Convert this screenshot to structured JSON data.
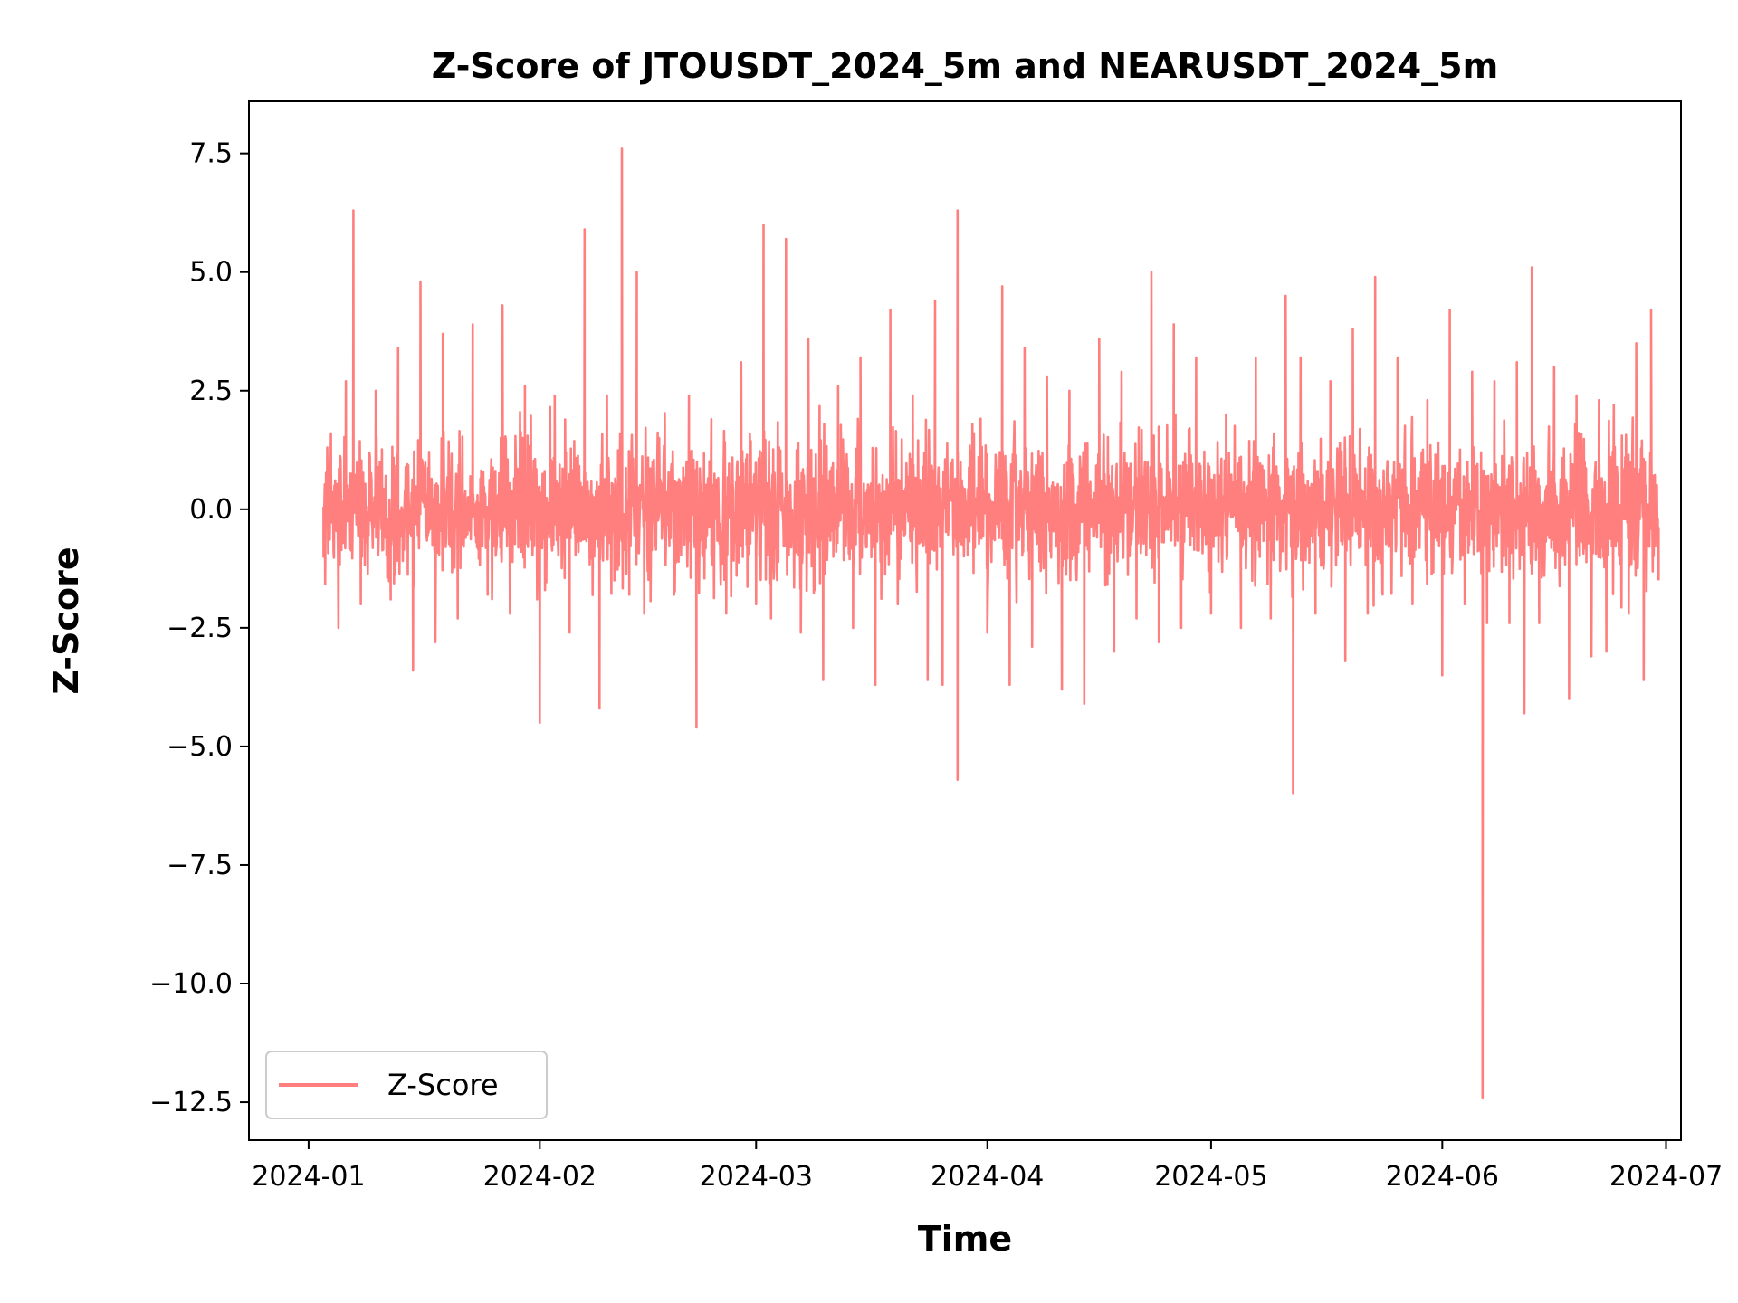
{
  "chart_data": {
    "type": "line",
    "title": "Z-Score of JTOUSDT_2024_5m and NEARUSDT_2024_5m",
    "xlabel": "Time",
    "ylabel": "Z-Score",
    "x_axis_type": "date",
    "xlim": [
      "2023-12-24",
      "2024-07-03"
    ],
    "ylim": [
      -13.3,
      8.6
    ],
    "x_ticks": [
      "2024-01",
      "2024-02",
      "2024-03",
      "2024-04",
      "2024-05",
      "2024-06",
      "2024-07"
    ],
    "y_ticks": [
      7.5,
      5.0,
      2.5,
      0.0,
      -2.5,
      -5.0,
      -7.5,
      -10.0,
      -12.5
    ],
    "y_tick_labels": [
      "7.5",
      "5.0",
      "2.5",
      "0.0",
      "−2.5",
      "−5.0",
      "−7.5",
      "−10.0",
      "−12.5"
    ],
    "grid": false,
    "legend": {
      "placement": "lower-left",
      "entries": [
        "Z-Score"
      ]
    },
    "colors": {
      "line": "#ff7f7f",
      "axes": "#000000",
      "background": "#ffffff"
    },
    "series": [
      {
        "name": "Z-Score",
        "start": "2024-01-03",
        "end": "2024-06-30",
        "points": [
          [
            "2024-01-03",
            -1.0
          ],
          [
            "2024-01-04",
            1.6
          ],
          [
            "2024-01-05",
            -2.5
          ],
          [
            "2024-01-06",
            2.7
          ],
          [
            "2024-01-07",
            6.3
          ],
          [
            "2024-01-08",
            -2.0
          ],
          [
            "2024-01-10",
            2.5
          ],
          [
            "2024-01-12",
            -1.9
          ],
          [
            "2024-01-13",
            3.4
          ],
          [
            "2024-01-15",
            -3.4
          ],
          [
            "2024-01-16",
            4.8
          ],
          [
            "2024-01-18",
            -2.8
          ],
          [
            "2024-01-19",
            3.7
          ],
          [
            "2024-01-21",
            -2.3
          ],
          [
            "2024-01-23",
            3.9
          ],
          [
            "2024-01-25",
            -1.8
          ],
          [
            "2024-01-27",
            4.3
          ],
          [
            "2024-01-28",
            -2.2
          ],
          [
            "2024-01-30",
            2.6
          ],
          [
            "2024-02-01",
            -4.5
          ],
          [
            "2024-02-03",
            2.4
          ],
          [
            "2024-02-05",
            -2.6
          ],
          [
            "2024-02-07",
            5.9
          ],
          [
            "2024-02-09",
            -4.2
          ],
          [
            "2024-02-10",
            2.4
          ],
          [
            "2024-02-11",
            -1.5
          ],
          [
            "2024-02-12",
            7.6
          ],
          [
            "2024-02-13",
            -1.8
          ],
          [
            "2024-02-14",
            5.0
          ],
          [
            "2024-02-15",
            -2.2
          ],
          [
            "2024-02-17",
            1.5
          ],
          [
            "2024-02-19",
            -1.8
          ],
          [
            "2024-02-21",
            2.4
          ],
          [
            "2024-02-22",
            -4.6
          ],
          [
            "2024-02-24",
            1.9
          ],
          [
            "2024-02-26",
            -2.2
          ],
          [
            "2024-02-28",
            3.1
          ],
          [
            "2024-03-01",
            -2.0
          ],
          [
            "2024-03-02",
            6.0
          ],
          [
            "2024-03-03",
            -2.3
          ],
          [
            "2024-03-05",
            5.7
          ],
          [
            "2024-03-07",
            -2.6
          ],
          [
            "2024-03-08",
            3.6
          ],
          [
            "2024-03-10",
            -3.6
          ],
          [
            "2024-03-12",
            2.6
          ],
          [
            "2024-03-14",
            -2.5
          ],
          [
            "2024-03-15",
            3.2
          ],
          [
            "2024-03-17",
            -3.7
          ],
          [
            "2024-03-19",
            4.2
          ],
          [
            "2024-03-20",
            -2.0
          ],
          [
            "2024-03-22",
            2.4
          ],
          [
            "2024-03-24",
            -3.6
          ],
          [
            "2024-03-25",
            4.4
          ],
          [
            "2024-03-26",
            -3.7
          ],
          [
            "2024-03-28",
            6.3
          ],
          [
            "2024-03-28",
            -5.7
          ],
          [
            "2024-03-30",
            1.8
          ],
          [
            "2024-04-01",
            -2.6
          ],
          [
            "2024-04-03",
            4.7
          ],
          [
            "2024-04-04",
            -3.7
          ],
          [
            "2024-04-06",
            3.4
          ],
          [
            "2024-04-07",
            -2.9
          ],
          [
            "2024-04-09",
            2.8
          ],
          [
            "2024-04-11",
            -3.8
          ],
          [
            "2024-04-12",
            2.5
          ],
          [
            "2024-04-14",
            -4.1
          ],
          [
            "2024-04-16",
            3.6
          ],
          [
            "2024-04-18",
            -3.0
          ],
          [
            "2024-04-19",
            2.9
          ],
          [
            "2024-04-21",
            -2.3
          ],
          [
            "2024-04-23",
            5.0
          ],
          [
            "2024-04-24",
            -2.8
          ],
          [
            "2024-04-26",
            3.9
          ],
          [
            "2024-04-27",
            -2.5
          ],
          [
            "2024-04-29",
            3.2
          ],
          [
            "2024-05-01",
            -2.2
          ],
          [
            "2024-05-03",
            2.0
          ],
          [
            "2024-05-05",
            -2.5
          ],
          [
            "2024-05-07",
            3.2
          ],
          [
            "2024-05-09",
            -2.3
          ],
          [
            "2024-05-11",
            4.5
          ],
          [
            "2024-05-12",
            -6.0
          ],
          [
            "2024-05-13",
            3.2
          ],
          [
            "2024-05-15",
            -2.2
          ],
          [
            "2024-05-17",
            2.7
          ],
          [
            "2024-05-19",
            -3.2
          ],
          [
            "2024-05-20",
            3.8
          ],
          [
            "2024-05-22",
            -2.2
          ],
          [
            "2024-05-23",
            4.9
          ],
          [
            "2024-05-24",
            -1.8
          ],
          [
            "2024-05-26",
            3.2
          ],
          [
            "2024-05-28",
            -2.0
          ],
          [
            "2024-05-30",
            2.3
          ],
          [
            "2024-06-01",
            -3.5
          ],
          [
            "2024-06-02",
            4.2
          ],
          [
            "2024-06-04",
            -2.0
          ],
          [
            "2024-06-05",
            2.9
          ],
          [
            "2024-06-07",
            -2.4
          ],
          [
            "2024-06-08",
            2.7
          ],
          [
            "2024-06-10",
            -2.4
          ],
          [
            "2024-06-11",
            3.1
          ],
          [
            "2024-06-12",
            -4.3
          ],
          [
            "2024-06-13",
            5.1
          ],
          [
            "2024-06-14",
            -2.4
          ],
          [
            "2024-06-16",
            3.0
          ],
          [
            "2024-06-18",
            -4.0
          ],
          [
            "2024-06-19",
            2.4
          ],
          [
            "2024-06-21",
            -3.1
          ],
          [
            "2024-06-22",
            2.3
          ],
          [
            "2024-06-23",
            -3.0
          ],
          [
            "2024-06-24",
            2.2
          ],
          [
            "2024-06-26",
            -2.2
          ],
          [
            "2024-06-27",
            3.5
          ],
          [
            "2024-06-28",
            -3.6
          ],
          [
            "2024-06-29",
            4.2
          ],
          [
            "2024-06-30",
            -1.5
          ]
        ]
      }
    ]
  }
}
